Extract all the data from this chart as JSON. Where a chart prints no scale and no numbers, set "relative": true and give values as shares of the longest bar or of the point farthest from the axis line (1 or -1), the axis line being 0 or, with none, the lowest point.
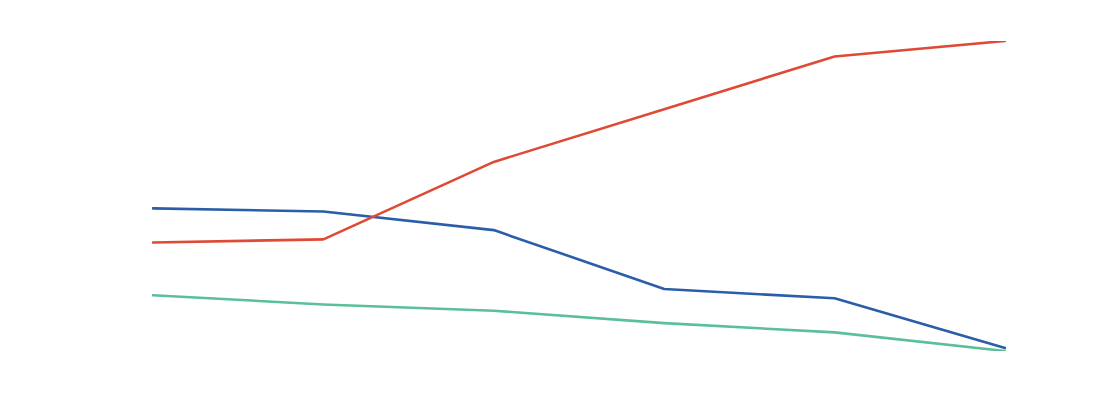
{
  "chart_data": {
    "type": "line",
    "relative": true,
    "categories": [
      null,
      null,
      null,
      null,
      null,
      null
    ],
    "series": [
      {
        "color": "#de4a35",
        "values": [
          0.35,
          0.36,
          0.61,
          0.78,
          0.95,
          1
        ]
      },
      {
        "color": "#2a5ea8",
        "values": [
          0.46,
          0.45,
          0.39,
          0.2,
          0.17,
          0.01
        ]
      },
      {
        "color": "#5bbf98",
        "values": [
          0.18,
          0.15,
          0.13,
          0.09,
          0.06,
          0
        ]
      }
    ],
    "marker": "none",
    "line_style": "solid",
    "grid": false,
    "legend": false
  }
}
